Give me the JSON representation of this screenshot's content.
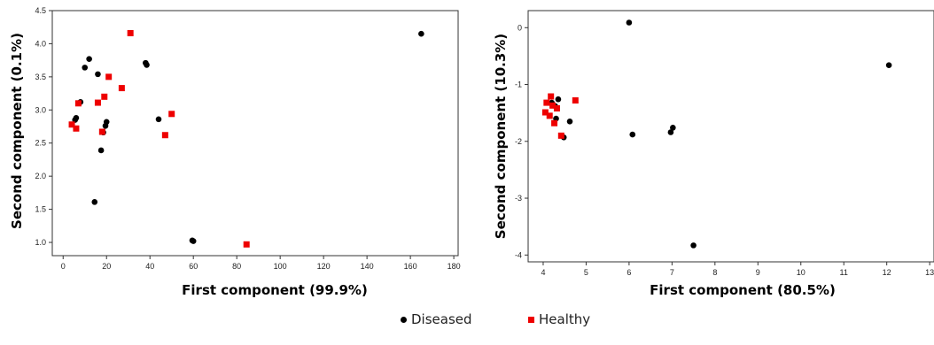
{
  "colors": {
    "diseased": "#000000",
    "healthy": "#ee0000"
  },
  "legend": {
    "items": [
      {
        "label": "Diseased",
        "marker": "circle",
        "color": "#000000"
      },
      {
        "label": "Healthy",
        "marker": "square",
        "color": "#ee0000"
      }
    ]
  },
  "chart_data": [
    {
      "type": "scatter",
      "xlabel": "First component (99.9%)",
      "ylabel": "Second component (0.1%)",
      "xlim": [
        -5,
        182
      ],
      "ylim": [
        0.8,
        4.5
      ],
      "xticks": [
        "0",
        "20",
        "40",
        "60",
        "80",
        "100",
        "120",
        "140",
        "160",
        "180"
      ],
      "xtick_values": [
        0,
        20,
        40,
        60,
        80,
        100,
        120,
        140,
        160,
        180
      ],
      "yticks": [
        "1.0",
        "1.5",
        "2.0",
        "2.5",
        "3.0",
        "3.5",
        "4.0",
        "4.5"
      ],
      "ytick_values": [
        1.0,
        1.5,
        2.0,
        2.5,
        3.0,
        3.5,
        4.0,
        4.5
      ],
      "series": [
        {
          "name": "Diseased",
          "marker": "circle",
          "points": [
            [
              165,
              4.15
            ],
            [
              12,
              3.77
            ],
            [
              38,
              3.71
            ],
            [
              38.5,
              3.68
            ],
            [
              10,
              3.64
            ],
            [
              16,
              3.54
            ],
            [
              8,
              3.12
            ],
            [
              20,
              2.82
            ],
            [
              6,
              2.88
            ],
            [
              5.5,
              2.85
            ],
            [
              19.5,
              2.76
            ],
            [
              44,
              2.86
            ],
            [
              18.5,
              2.66
            ],
            [
              17.5,
              2.39
            ],
            [
              14.5,
              1.61
            ],
            [
              59.5,
              1.03
            ],
            [
              60,
              1.02
            ]
          ]
        },
        {
          "name": "Healthy",
          "marker": "square",
          "points": [
            [
              31,
              4.16
            ],
            [
              21,
              3.5
            ],
            [
              27,
              3.33
            ],
            [
              19,
              3.2
            ],
            [
              7,
              3.1
            ],
            [
              16,
              3.11
            ],
            [
              50,
              2.94
            ],
            [
              4,
              2.78
            ],
            [
              6,
              2.72
            ],
            [
              18,
              2.67
            ],
            [
              47,
              2.62
            ],
            [
              84.5,
              0.97
            ]
          ]
        }
      ]
    },
    {
      "type": "scatter",
      "xlabel": "First component (80.5%)",
      "ylabel": "Second component (10.3%)",
      "xlim": [
        3.65,
        13.1
      ],
      "ylim": [
        -4.12,
        0.3
      ],
      "xticks": [
        "4",
        "5",
        "6",
        "7",
        "8",
        "9",
        "10",
        "11",
        "12",
        "13"
      ],
      "xtick_values": [
        4,
        5,
        6,
        7,
        8,
        9,
        10,
        11,
        12,
        13
      ],
      "yticks": [
        "0",
        "-1",
        "-2",
        "-3",
        "-4"
      ],
      "ytick_values": [
        0,
        -1,
        -2,
        -3,
        -4
      ],
      "series": [
        {
          "name": "Diseased",
          "marker": "circle",
          "points": [
            [
              6.0,
              0.09
            ],
            [
              12.05,
              -0.66
            ],
            [
              4.35,
              -1.26
            ],
            [
              4.2,
              -1.32
            ],
            [
              4.28,
              -1.38
            ],
            [
              4.3,
              -1.6
            ],
            [
              4.62,
              -1.65
            ],
            [
              7.02,
              -1.76
            ],
            [
              6.97,
              -1.84
            ],
            [
              6.08,
              -1.88
            ],
            [
              4.48,
              -1.93
            ],
            [
              7.5,
              -3.83
            ]
          ]
        },
        {
          "name": "Healthy",
          "marker": "square",
          "points": [
            [
              4.18,
              -1.21
            ],
            [
              4.75,
              -1.28
            ],
            [
              4.08,
              -1.32
            ],
            [
              4.22,
              -1.37
            ],
            [
              4.32,
              -1.42
            ],
            [
              4.05,
              -1.49
            ],
            [
              4.15,
              -1.55
            ],
            [
              4.26,
              -1.68
            ],
            [
              4.42,
              -1.9
            ]
          ]
        }
      ]
    }
  ]
}
